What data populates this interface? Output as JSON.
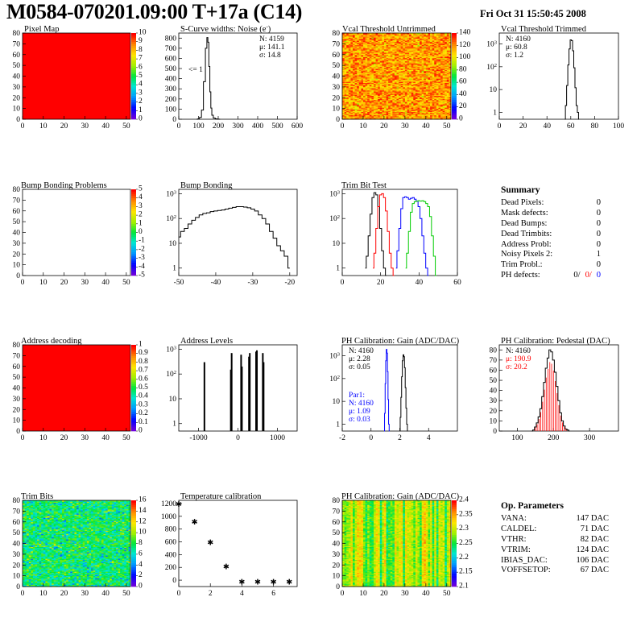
{
  "header": {
    "title": "M0584-070201.09:00 T+17a (C14)",
    "date": "Fri Oct 31 15:50:45 2008"
  },
  "colors": {
    "red": "#ff0000",
    "blue": "#0000ff",
    "green": "#00cc00",
    "black": "#000000"
  },
  "chart_data": [
    {
      "id": "pixel-map",
      "type": "heatmap",
      "title": "Pixel Map",
      "xlim": [
        0,
        52
      ],
      "ylim": [
        0,
        80
      ],
      "xticks": [
        0,
        10,
        20,
        30,
        40,
        50
      ],
      "yticks": [
        0,
        10,
        20,
        30,
        40,
        50,
        60,
        70,
        80
      ],
      "zlim": [
        0,
        10
      ],
      "zticks": [
        0,
        1,
        2,
        3,
        4,
        5,
        6,
        7,
        8,
        9,
        10
      ],
      "fill": "uniform-max"
    },
    {
      "id": "scurve-widths",
      "type": "line",
      "title": "S-Curve widths: Noise (e",
      "title_sup": "-",
      "title_end": ")",
      "xlim": [
        0,
        600
      ],
      "ylim": [
        0,
        850
      ],
      "xticks": [
        0,
        100,
        200,
        300,
        400,
        500,
        600
      ],
      "yticks": [
        0,
        100,
        200,
        300,
        400,
        500,
        600,
        700,
        800
      ],
      "stats": [
        "N: 4159",
        "μ: 141.1",
        "σ: 14.8"
      ],
      "annotation": "<= 1",
      "x": [
        90,
        100,
        110,
        120,
        130,
        140,
        145,
        150,
        155,
        160,
        165,
        170,
        180,
        190,
        200,
        210
      ],
      "values": [
        0,
        3,
        18,
        90,
        370,
        700,
        805,
        760,
        520,
        270,
        110,
        40,
        12,
        4,
        1,
        0
      ]
    },
    {
      "id": "vcal-untrimmed",
      "type": "heatmap",
      "title": "Vcal Threshold Untrimmed",
      "xlim": [
        0,
        52
      ],
      "ylim": [
        0,
        80
      ],
      "xticks": [
        0,
        10,
        20,
        30,
        40,
        50
      ],
      "yticks": [
        0,
        10,
        20,
        30,
        40,
        50,
        60,
        70,
        80
      ],
      "zlim": [
        0,
        140
      ],
      "zticks": [
        0,
        20,
        40,
        60,
        80,
        100,
        120,
        140
      ],
      "fill": "random-high"
    },
    {
      "id": "vcal-trimmed",
      "type": "line",
      "title": "Vcal Threshold Trimmed",
      "log": true,
      "xlim": [
        0,
        100
      ],
      "ylim": [
        0.5,
        3000
      ],
      "xticks": [
        0,
        20,
        40,
        60,
        80,
        100
      ],
      "yticks": [
        1,
        10,
        100,
        1000
      ],
      "stats": [
        "N: 4160",
        "μ: 60.8",
        "σ:  1.2"
      ],
      "x": [
        55,
        56,
        57,
        58,
        59,
        60,
        61,
        62,
        63,
        64,
        65,
        66,
        67
      ],
      "values": [
        0,
        2,
        15,
        120,
        600,
        1500,
        1400,
        500,
        90,
        12,
        2,
        1,
        0
      ]
    },
    {
      "id": "bump-bonding-problems",
      "type": "heatmap",
      "title": "Bump Bonding Problems",
      "xlim": [
        0,
        52
      ],
      "ylim": [
        0,
        80
      ],
      "xticks": [
        0,
        10,
        20,
        30,
        40,
        50
      ],
      "yticks": [
        0,
        10,
        20,
        30,
        40,
        50,
        60,
        70,
        80
      ],
      "zlim": [
        -5,
        5
      ],
      "zticks": [
        -5,
        -4,
        -3,
        -2,
        -1,
        0,
        1,
        2,
        3,
        4,
        5
      ],
      "fill": "empty"
    },
    {
      "id": "bump-bonding",
      "type": "line",
      "title": "Bump Bonding",
      "log": true,
      "xlim": [
        -50,
        -18
      ],
      "ylim": [
        0.5,
        1500
      ],
      "xticks": [
        -50,
        -40,
        -30,
        -20
      ],
      "yticks": [
        1,
        10,
        100,
        1000
      ],
      "x": [
        -50,
        -49,
        -48,
        -47,
        -46,
        -45,
        -44,
        -43,
        -42,
        -41,
        -40,
        -39,
        -38,
        -37,
        -36,
        -35,
        -34,
        -33,
        -32,
        -31,
        -30,
        -29,
        -28,
        -27,
        -26,
        -25,
        -24,
        -23,
        -22,
        -21,
        -20
      ],
      "values": [
        18,
        30,
        40,
        60,
        85,
        110,
        140,
        160,
        170,
        190,
        200,
        210,
        220,
        240,
        260,
        280,
        300,
        300,
        290,
        270,
        240,
        200,
        140,
        100,
        60,
        30,
        16,
        8,
        5,
        3,
        1
      ]
    },
    {
      "id": "trim-bit-test",
      "type": "line",
      "title": "Trim Bit Test",
      "log": true,
      "xlim": [
        0,
        60
      ],
      "ylim": [
        0.5,
        1500
      ],
      "xticks": [
        0,
        20,
        40,
        60
      ],
      "yticks": [
        1,
        10,
        100,
        1000
      ],
      "series": [
        {
          "color": "black",
          "x": [
            12,
            13,
            14,
            15,
            16,
            17,
            18,
            19,
            20,
            21,
            22,
            23
          ],
          "values": [
            1,
            3,
            20,
            150,
            700,
            1100,
            900,
            300,
            40,
            5,
            1,
            0
          ]
        },
        {
          "color": "red",
          "x": [
            16,
            17,
            18,
            19,
            20,
            21,
            22,
            23,
            24,
            25,
            26,
            27
          ],
          "values": [
            1,
            4,
            40,
            300,
            900,
            1000,
            700,
            200,
            30,
            4,
            1,
            0
          ]
        },
        {
          "color": "blue",
          "x": [
            28,
            29,
            30,
            31,
            32,
            33,
            34,
            35,
            36,
            37,
            38,
            39,
            40,
            41,
            42,
            43,
            44,
            45
          ],
          "values": [
            1,
            5,
            40,
            250,
            700,
            750,
            700,
            600,
            650,
            700,
            600,
            500,
            300,
            100,
            20,
            4,
            1,
            0
          ]
        },
        {
          "color": "green",
          "x": [
            33,
            34,
            35,
            36,
            37,
            38,
            39,
            40,
            41,
            42,
            43,
            44,
            45,
            46,
            47,
            48,
            49
          ],
          "values": [
            1,
            4,
            30,
            180,
            400,
            480,
            500,
            520,
            500,
            520,
            480,
            400,
            300,
            120,
            20,
            3,
            0
          ]
        }
      ]
    },
    {
      "id": "address-decoding",
      "type": "heatmap",
      "title": "Address decoding",
      "xlim": [
        0,
        52
      ],
      "ylim": [
        0,
        80
      ],
      "xticks": [
        0,
        10,
        20,
        30,
        40,
        50
      ],
      "yticks": [
        0,
        10,
        20,
        30,
        40,
        50,
        60,
        70,
        80
      ],
      "zlim": [
        0,
        1
      ],
      "zticks": [
        0,
        0.1,
        0.2,
        0.3,
        0.4,
        0.5,
        0.6,
        0.7,
        0.8,
        0.9,
        1
      ],
      "fill": "uniform-max"
    },
    {
      "id": "address-levels",
      "type": "bar",
      "title": "Address Levels",
      "log": true,
      "xlim": [
        -1500,
        1500
      ],
      "ylim": [
        0.5,
        1500
      ],
      "xticks": [
        -1000,
        0,
        1000
      ],
      "yticks": [
        1,
        10,
        100,
        1000
      ],
      "x": [
        -850,
        -180,
        -160,
        80,
        100,
        280,
        300,
        460,
        480,
        630,
        650
      ],
      "values": [
        300,
        150,
        700,
        600,
        200,
        500,
        700,
        800,
        900,
        700,
        300
      ]
    },
    {
      "id": "ph-gain",
      "type": "line",
      "title": "PH Calibration: Gain (ADC/DAC)",
      "log": true,
      "xlim": [
        -2,
        6
      ],
      "ylim": [
        0.5,
        3000
      ],
      "xticks": [
        -2,
        0,
        2,
        4
      ],
      "yticks": [
        1,
        10,
        100,
        1000
      ],
      "stats": [
        "N: 4160",
        "μ: 2.28",
        "σ: 0.05"
      ],
      "stats2": [
        "Par1:",
        "N: 4160",
        "μ: 1.09",
        "σ: 0.03"
      ],
      "series": [
        {
          "color": "black",
          "x": [
            2.0,
            2.05,
            2.1,
            2.15,
            2.2,
            2.25,
            2.3,
            2.35,
            2.4,
            2.45,
            2.5,
            2.55
          ],
          "values": [
            0,
            2,
            15,
            120,
            600,
            1100,
            900,
            300,
            40,
            5,
            1,
            0
          ]
        },
        {
          "color": "blue",
          "x": [
            0.92,
            0.96,
            1.0,
            1.04,
            1.08,
            1.12,
            1.16,
            1.2,
            1.24,
            1.28
          ],
          "values": [
            0,
            3,
            60,
            600,
            1900,
            1300,
            200,
            12,
            1,
            0
          ]
        }
      ]
    },
    {
      "id": "ph-pedestal",
      "type": "line",
      "title": "PH Calibration: Pedestal (DAC)",
      "xlim": [
        50,
        380
      ],
      "ylim": [
        0,
        85
      ],
      "xticks": [
        100,
        200,
        300
      ],
      "yticks": [
        0,
        10,
        20,
        30,
        40,
        50,
        60,
        70,
        80
      ],
      "stats": [
        "N: 4160",
        "μ: 190.9",
        "σ: 20.2"
      ],
      "x": [
        140,
        145,
        150,
        155,
        160,
        165,
        170,
        175,
        180,
        185,
        190,
        195,
        200,
        205,
        210,
        215,
        220,
        225,
        230,
        235,
        240,
        245
      ],
      "values": [
        0,
        1,
        4,
        8,
        14,
        22,
        34,
        48,
        62,
        72,
        80,
        78,
        70,
        58,
        44,
        30,
        18,
        10,
        5,
        2,
        1,
        0
      ]
    },
    {
      "id": "trim-bits",
      "type": "heatmap",
      "title": "Trim Bits",
      "xlim": [
        0,
        52
      ],
      "ylim": [
        0,
        80
      ],
      "xticks": [
        0,
        10,
        20,
        30,
        40,
        50
      ],
      "yticks": [
        0,
        10,
        20,
        30,
        40,
        50,
        60,
        70,
        80
      ],
      "zlim": [
        0,
        16
      ],
      "zticks": [
        0,
        2,
        4,
        6,
        8,
        10,
        12,
        14,
        16
      ],
      "fill": "random-mid"
    },
    {
      "id": "temperature-calibration",
      "type": "scatter",
      "title": "Temperature calibration",
      "xlim": [
        0,
        7.5
      ],
      "ylim": [
        -100,
        1250
      ],
      "xticks": [
        0,
        2,
        4,
        6
      ],
      "yticks": [
        0,
        200,
        400,
        600,
        800,
        1000,
        1200
      ],
      "x": [
        0,
        1,
        2,
        3,
        4,
        5,
        6,
        7
      ],
      "values": [
        1200,
        920,
        600,
        220,
        -20,
        -20,
        -20,
        -20
      ]
    },
    {
      "id": "ph-gain-map",
      "type": "heatmap",
      "title": "PH Calibration: Gain (ADC/DAC)",
      "xlim": [
        0,
        52
      ],
      "ylim": [
        0,
        80
      ],
      "xticks": [
        0,
        10,
        20,
        30,
        40,
        50
      ],
      "yticks": [
        0,
        10,
        20,
        30,
        40,
        50,
        60,
        70,
        80
      ],
      "zlim": [
        2.1,
        2.4
      ],
      "zticks": [
        2.1,
        2.15,
        2.2,
        2.25,
        2.3,
        2.35,
        2.4
      ],
      "fill": "columns"
    }
  ],
  "summary": {
    "title": "Summary",
    "rows": [
      {
        "label": "Dead Pixels:",
        "value": "0"
      },
      {
        "label": "Mask defects:",
        "value": "0"
      },
      {
        "label": "Dead Bumps:",
        "value": "0"
      },
      {
        "label": "Dead Trimbits:",
        "value": "0"
      },
      {
        "label": "Address Probl:",
        "value": "0"
      },
      {
        "label": "Noisy Pixels 2:",
        "value": "1"
      },
      {
        "label": "Trim Probl.:",
        "value": "0"
      }
    ],
    "ph_label": "PH defects:",
    "ph_values": [
      "0/",
      "0/",
      "0"
    ]
  },
  "op_params": {
    "title": "Op. Parameters",
    "rows": [
      {
        "label": "VANA:",
        "value": "147 DAC"
      },
      {
        "label": "CALDEL:",
        "value": "71 DAC"
      },
      {
        "label": "VTHR:",
        "value": "82 DAC"
      },
      {
        "label": "VTRIM:",
        "value": "124 DAC"
      },
      {
        "label": "IBIAS_DAC:",
        "value": "106 DAC"
      },
      {
        "label": "VOFFSETOP:",
        "value": "67 DAC"
      }
    ]
  }
}
